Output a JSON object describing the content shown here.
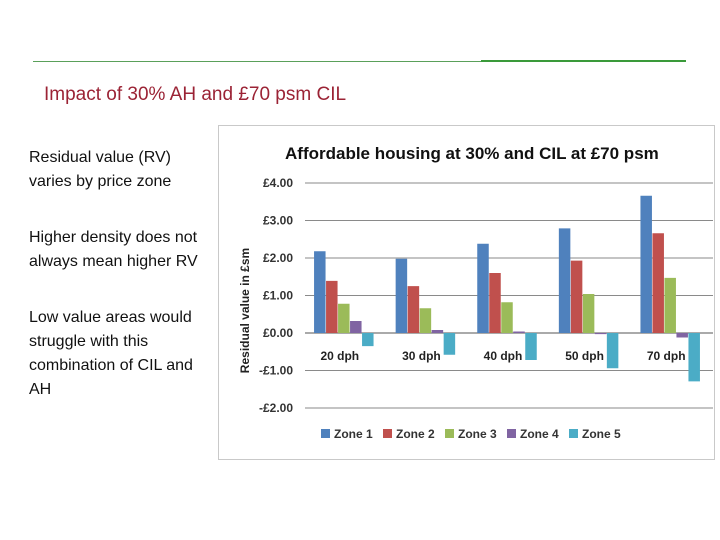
{
  "slide": {
    "title": "Impact of 30% AH and £70 psm CIL",
    "bullets": [
      "Residual value (RV) varies by price zone",
      "Higher density does not always mean higher RV",
      "Low value areas would struggle with this combination of CIL and AH"
    ]
  },
  "colors": {
    "title": "#9b2335",
    "rule": "#3a9a3a",
    "series": [
      "#4f81bd",
      "#c0504d",
      "#9bbb59",
      "#8064a2",
      "#4bacc6"
    ]
  },
  "chart_data": {
    "type": "bar",
    "title": "Affordable housing at 30% and CIL at £70 psm",
    "ylabel": "Residual value in £sm",
    "xlabel": "",
    "categories": [
      "20 dph",
      "30 dph",
      "40 dph",
      "50 dph",
      "70 dph"
    ],
    "ylim": [
      -2,
      4
    ],
    "yticks": [
      {
        "value": 4,
        "label": "£4.00"
      },
      {
        "value": 3,
        "label": "£3.00"
      },
      {
        "value": 2,
        "label": "£2.00"
      },
      {
        "value": 1,
        "label": "£1.00"
      },
      {
        "value": 0,
        "label": "£0.00"
      },
      {
        "value": -1,
        "label": "-£1.00"
      },
      {
        "value": -2,
        "label": "-£2.00"
      }
    ],
    "grid": true,
    "legend_position": "bottom",
    "series": [
      {
        "name": "Zone 1",
        "values": [
          2.18,
          1.98,
          2.38,
          2.79,
          3.66
        ]
      },
      {
        "name": "Zone 2",
        "values": [
          1.39,
          1.25,
          1.6,
          1.93,
          2.66
        ]
      },
      {
        "name": "Zone 3",
        "values": [
          0.78,
          0.66,
          0.82,
          1.04,
          1.47
        ]
      },
      {
        "name": "Zone 4",
        "values": [
          0.32,
          0.08,
          0.04,
          -0.03,
          -0.12
        ]
      },
      {
        "name": "Zone 5",
        "values": [
          -0.35,
          -0.58,
          -0.72,
          -0.94,
          -1.29
        ]
      }
    ],
    "legend_labels": [
      "Zone 1",
      "Zone 2",
      "Zone 3",
      "Zone 4",
      "Zone 5"
    ]
  }
}
